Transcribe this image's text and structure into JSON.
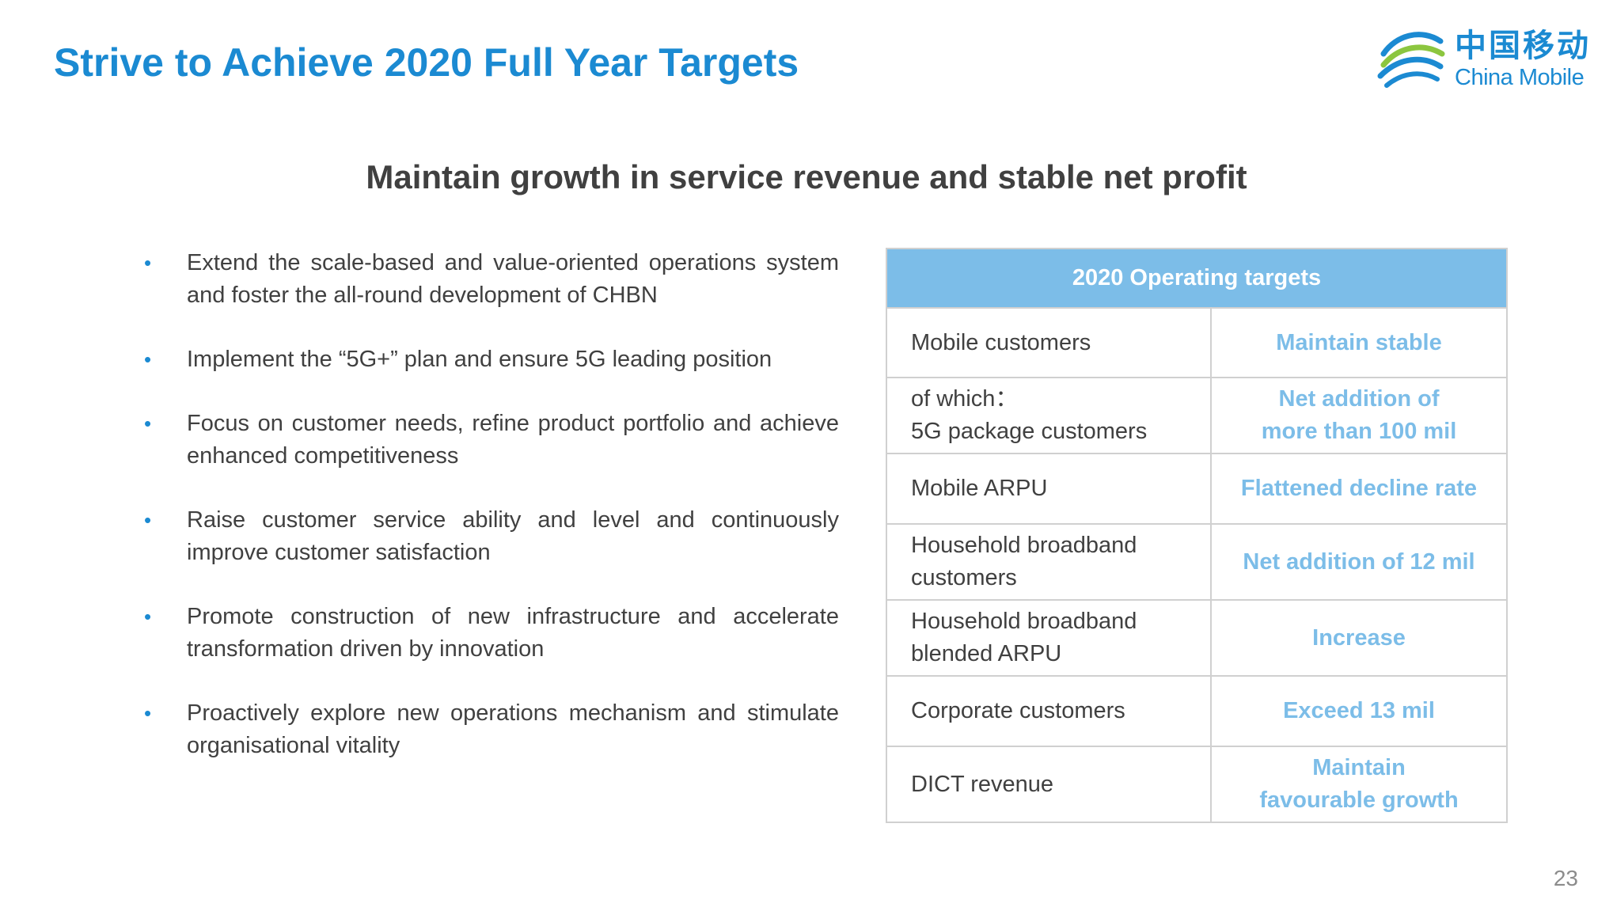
{
  "header": {
    "title": "Strive to Achieve 2020 Full Year Targets",
    "logo_cn": "中国移动",
    "logo_en": "China Mobile"
  },
  "subtitle": "Maintain growth in service revenue and stable net profit",
  "bullets": [
    "Extend the scale-based and value-oriented operations system and foster the all-round development of CHBN",
    "Implement the “5G+” plan and ensure 5G leading position",
    "Focus on customer needs, refine product portfolio and achieve enhanced competitiveness",
    "Raise customer service ability and level and continuously improve customer satisfaction",
    "Promote construction of new infrastructure and accelerate transformation driven by innovation",
    "Proactively explore new operations mechanism and stimulate organisational vitality"
  ],
  "table": {
    "header": "2020 Operating targets",
    "rows": [
      {
        "metric": [
          "Mobile customers"
        ],
        "target": [
          "Maintain stable"
        ]
      },
      {
        "metric": [
          "of which：",
          "5G package customers"
        ],
        "target": [
          "Net addition of",
          "more than 100 mil"
        ]
      },
      {
        "metric": [
          "Mobile ARPU"
        ],
        "target": [
          "Flattened decline rate"
        ]
      },
      {
        "metric": [
          "Household broadband",
          "customers"
        ],
        "target": [
          "Net addition of 12 mil"
        ]
      },
      {
        "metric": [
          "Household broadband",
          "blended ARPU"
        ],
        "target": [
          "Increase"
        ]
      },
      {
        "metric": [
          "Corporate customers"
        ],
        "target": [
          "Exceed 13 mil"
        ]
      },
      {
        "metric": [
          "DICT revenue"
        ],
        "target": [
          "Maintain",
          "favourable growth"
        ]
      }
    ]
  },
  "colors": {
    "brand_blue": "#1b8ad2",
    "table_header": "#7cbde8",
    "logo_green": "#8cc63f",
    "text": "#404040"
  },
  "bullet_glyph": "•",
  "page_number": "23"
}
